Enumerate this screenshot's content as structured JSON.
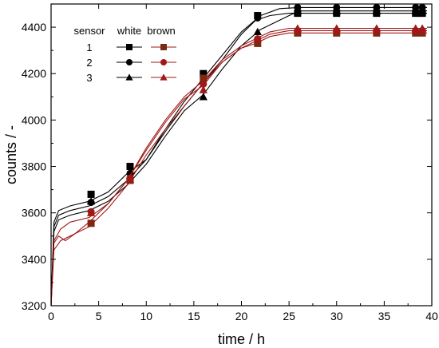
{
  "chart_data": {
    "type": "line",
    "title": "",
    "xlabel": "time / h",
    "ylabel": "counts / -",
    "xlim": [
      0,
      40
    ],
    "ylim": [
      3200,
      4500
    ],
    "xticks": [
      0,
      5,
      10,
      15,
      20,
      25,
      30,
      35,
      40
    ],
    "yticks": [
      3200,
      3400,
      3600,
      3800,
      4000,
      4200,
      4400
    ],
    "grid": false,
    "legend": {
      "placement": "top-left",
      "header_sensor": "sensor",
      "header_white": "white",
      "header_brown": "brown",
      "rows": [
        "1",
        "2",
        "3"
      ],
      "markers": [
        "square",
        "circle",
        "triangle"
      ]
    },
    "colors": {
      "white": "#000000",
      "brown": "#a01818",
      "brown_square": "#7a2a10"
    },
    "series": [
      {
        "group": "white",
        "sensor": "1",
        "marker": "square",
        "line": [
          [
            0,
            3200
          ],
          [
            0.3,
            3560
          ],
          [
            0.8,
            3610
          ],
          [
            2,
            3630
          ],
          [
            4,
            3650
          ],
          [
            6,
            3690
          ],
          [
            8,
            3770
          ],
          [
            10,
            3830
          ],
          [
            12,
            3950
          ],
          [
            14,
            4060
          ],
          [
            16,
            4160
          ],
          [
            18,
            4260
          ],
          [
            20,
            4370
          ],
          [
            21.5,
            4430
          ],
          [
            23,
            4450
          ],
          [
            25,
            4460
          ],
          [
            30,
            4460
          ],
          [
            35,
            4460
          ],
          [
            39.5,
            4460
          ]
        ],
        "points": [
          [
            4.2,
            3680
          ],
          [
            8.3,
            3800
          ],
          [
            16,
            4200
          ],
          [
            21.7,
            4450
          ],
          [
            25.9,
            4460
          ],
          [
            30,
            4460
          ],
          [
            34.2,
            4460
          ],
          [
            38.3,
            4460
          ],
          [
            39,
            4460
          ]
        ]
      },
      {
        "group": "white",
        "sensor": "2",
        "marker": "circle",
        "line": [
          [
            0,
            3200
          ],
          [
            0.3,
            3540
          ],
          [
            0.8,
            3590
          ],
          [
            2,
            3610
          ],
          [
            4,
            3630
          ],
          [
            6,
            3670
          ],
          [
            8,
            3740
          ],
          [
            10,
            3830
          ],
          [
            12,
            3960
          ],
          [
            14,
            4080
          ],
          [
            16,
            4180
          ],
          [
            18,
            4280
          ],
          [
            20,
            4380
          ],
          [
            22,
            4450
          ],
          [
            24,
            4480
          ],
          [
            26,
            4485
          ],
          [
            30,
            4485
          ],
          [
            35,
            4485
          ],
          [
            39.5,
            4485
          ]
        ],
        "points": [
          [
            4.2,
            3645
          ],
          [
            8.3,
            3770
          ],
          [
            16,
            4190
          ],
          [
            21.7,
            4440
          ],
          [
            25.9,
            4485
          ],
          [
            30,
            4485
          ],
          [
            34.2,
            4485
          ],
          [
            38.3,
            4485
          ],
          [
            39,
            4485
          ]
        ]
      },
      {
        "group": "white",
        "sensor": "3",
        "marker": "triangle",
        "line": [
          [
            0,
            3200
          ],
          [
            0.3,
            3520
          ],
          [
            0.8,
            3570
          ],
          [
            2,
            3590
          ],
          [
            4,
            3610
          ],
          [
            6,
            3650
          ],
          [
            8,
            3720
          ],
          [
            10,
            3810
          ],
          [
            12,
            3930
          ],
          [
            14,
            4040
          ],
          [
            16,
            4110
          ],
          [
            18,
            4220
          ],
          [
            20,
            4320
          ],
          [
            22,
            4390
          ],
          [
            24,
            4430
          ],
          [
            26,
            4470
          ],
          [
            30,
            4470
          ],
          [
            35,
            4470
          ],
          [
            39.5,
            4470
          ]
        ],
        "points": [
          [
            4.2,
            3650
          ],
          [
            8.3,
            3760
          ],
          [
            16,
            4100
          ],
          [
            21.7,
            4380
          ],
          [
            25.9,
            4470
          ],
          [
            30,
            4470
          ],
          [
            34.2,
            4470
          ],
          [
            38.3,
            4470
          ],
          [
            39,
            4470
          ]
        ]
      },
      {
        "group": "brown",
        "sensor": "1",
        "marker": "square",
        "line": [
          [
            0,
            3200
          ],
          [
            0.3,
            3440
          ],
          [
            1,
            3480
          ],
          [
            2,
            3500
          ],
          [
            4,
            3540
          ],
          [
            6,
            3620
          ],
          [
            8,
            3720
          ],
          [
            10,
            3850
          ],
          [
            12,
            3960
          ],
          [
            14,
            4060
          ],
          [
            16,
            4160
          ],
          [
            18,
            4250
          ],
          [
            20,
            4310
          ],
          [
            21.5,
            4330
          ],
          [
            23,
            4360
          ],
          [
            25,
            4375
          ],
          [
            30,
            4375
          ],
          [
            35,
            4375
          ],
          [
            39.5,
            4375
          ]
        ],
        "points": [
          [
            4.2,
            3555
          ],
          [
            8.3,
            3740
          ],
          [
            16,
            4180
          ],
          [
            21.7,
            4330
          ],
          [
            25.9,
            4375
          ],
          [
            30,
            4375
          ],
          [
            34.2,
            4375
          ],
          [
            38.3,
            4375
          ],
          [
            39,
            4375
          ]
        ]
      },
      {
        "group": "brown",
        "sensor": "2",
        "marker": "circle",
        "line": [
          [
            0,
            3200
          ],
          [
            0.3,
            3470
          ],
          [
            0.8,
            3500
          ],
          [
            1.5,
            3480
          ],
          [
            2.5,
            3510
          ],
          [
            4,
            3560
          ],
          [
            6,
            3640
          ],
          [
            8,
            3740
          ],
          [
            10,
            3870
          ],
          [
            12,
            3990
          ],
          [
            14,
            4090
          ],
          [
            16,
            4150
          ],
          [
            18,
            4250
          ],
          [
            20,
            4310
          ],
          [
            21.5,
            4340
          ],
          [
            23,
            4370
          ],
          [
            25,
            4385
          ],
          [
            30,
            4385
          ],
          [
            35,
            4385
          ],
          [
            39.5,
            4385
          ]
        ],
        "points": [
          [
            4.2,
            3605
          ],
          [
            8.3,
            3750
          ],
          [
            16,
            4155
          ],
          [
            21.7,
            4350
          ],
          [
            25.9,
            4385
          ],
          [
            30,
            4385
          ],
          [
            34.2,
            4385
          ],
          [
            38.3,
            4385
          ],
          [
            39,
            4385
          ]
        ]
      },
      {
        "group": "brown",
        "sensor": "3",
        "marker": "triangle",
        "line": [
          [
            0,
            3200
          ],
          [
            0.3,
            3480
          ],
          [
            1,
            3530
          ],
          [
            2,
            3560
          ],
          [
            4,
            3580
          ],
          [
            6,
            3640
          ],
          [
            8,
            3740
          ],
          [
            10,
            3880
          ],
          [
            12,
            4000
          ],
          [
            14,
            4100
          ],
          [
            16,
            4170
          ],
          [
            18,
            4260
          ],
          [
            20,
            4320
          ],
          [
            21.5,
            4350
          ],
          [
            23,
            4380
          ],
          [
            25,
            4395
          ],
          [
            30,
            4395
          ],
          [
            35,
            4395
          ],
          [
            39.5,
            4395
          ]
        ],
        "points": [
          [
            4.2,
            3600
          ],
          [
            8.3,
            3745
          ],
          [
            16,
            4130
          ],
          [
            21.7,
            4350
          ],
          [
            25.9,
            4395
          ],
          [
            30,
            4395
          ],
          [
            34.2,
            4395
          ],
          [
            38.3,
            4395
          ],
          [
            39,
            4395
          ]
        ]
      }
    ]
  }
}
